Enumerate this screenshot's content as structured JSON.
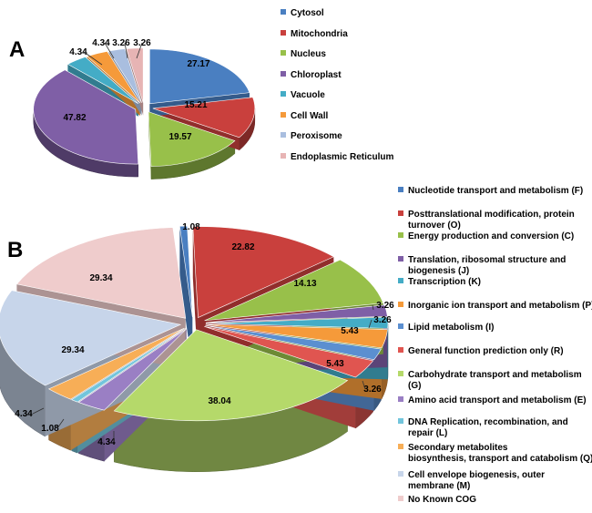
{
  "chart_data": [
    {
      "type": "pie",
      "panel_label": "A",
      "labels": [
        "Cytosol",
        "Mitochondria",
        "Nucleus",
        "Chloroplast",
        "Vacuole",
        "Cell Wall",
        "Peroxisome",
        "Endoplasmic Reticulum"
      ],
      "values": [
        27.17,
        15.21,
        19.57,
        47.82,
        4.34,
        4.34,
        3.26,
        3.26
      ],
      "value_labels": [
        "27.17",
        "15.21",
        "19.57",
        "47.82",
        "4.34",
        "4.34",
        "3.26",
        "3.26"
      ],
      "colors": [
        "#4a7fc1",
        "#c9403d",
        "#98c04a",
        "#7f5fa6",
        "#44acc6",
        "#f59a3a",
        "#a9bedf",
        "#e7b4b4"
      ],
      "legend_position": "right",
      "exploded": true,
      "style": "3d"
    },
    {
      "type": "pie",
      "panel_label": "B",
      "labels": [
        "Nucleotide transport and metabolism (F)",
        "Posttranslational modification, protein turnover (O)",
        "Energy production and conversion (C)",
        "Translation, ribosomal structure and biogenesis (J)",
        "Transcription (K)",
        "Inorganic ion transport and metabolism (P)",
        "Lipid metabolism (I)",
        "General function prediction only (R)",
        "Carbohydrate transport and metabolism (G)",
        "Amino acid transport and metabolism (E)",
        "DNA Replication, recombination, and repair (L)",
        "Secondary metabolites biosynthesis, transport and catabolism (Q)",
        "Cell envelope biogenesis, outer membrane (M)",
        "No Known COG"
      ],
      "legend_lines": [
        [
          "Nucleotide transport and metabolism (F)"
        ],
        [
          "Posttranslational modification, protein",
          "turnover (O)"
        ],
        [
          "Energy production and conversion (C)"
        ],
        [
          "Translation, ribosomal structure and",
          "biogenesis (J)"
        ],
        [
          "Transcription (K)"
        ],
        [
          "Inorganic ion transport and metabolism (P)"
        ],
        [
          "Lipid metabolism (I)"
        ],
        [
          "General function prediction only (R)"
        ],
        [
          "Carbohydrate transport and metabolism",
          "(G)"
        ],
        [
          "Amino acid transport and metabolism (E)"
        ],
        [
          "DNA Replication, recombination, and",
          "repair (L)"
        ],
        [
          "Secondary metabolites",
          "biosynthesis, transport and catabolism (Q)"
        ],
        [
          "Cell envelope biogenesis, outer",
          "membrane (M)"
        ],
        [
          "No Known COG"
        ]
      ],
      "values": [
        1.08,
        22.82,
        14.13,
        3.26,
        3.26,
        5.43,
        3.26,
        5.43,
        38.04,
        4.34,
        1.08,
        4.34,
        29.34,
        29.34
      ],
      "value_labels": [
        "1.08",
        "22.82",
        "14.13",
        "3.26",
        "3.26",
        "5.43",
        "3.26",
        "5.43",
        "38.04",
        "4.34",
        "1.08",
        "4.34",
        "29.34",
        "29.34"
      ],
      "colors": [
        "#4a7fc1",
        "#c9403d",
        "#98c04a",
        "#7f5fa6",
        "#44acc6",
        "#f59a3a",
        "#5b8fd0",
        "#e05550",
        "#b5d96a",
        "#9a7fc4",
        "#72c5dc",
        "#f7ae57",
        "#c7d5ea",
        "#efcccc"
      ],
      "legend_position": "right",
      "exploded": true,
      "style": "3d"
    }
  ]
}
